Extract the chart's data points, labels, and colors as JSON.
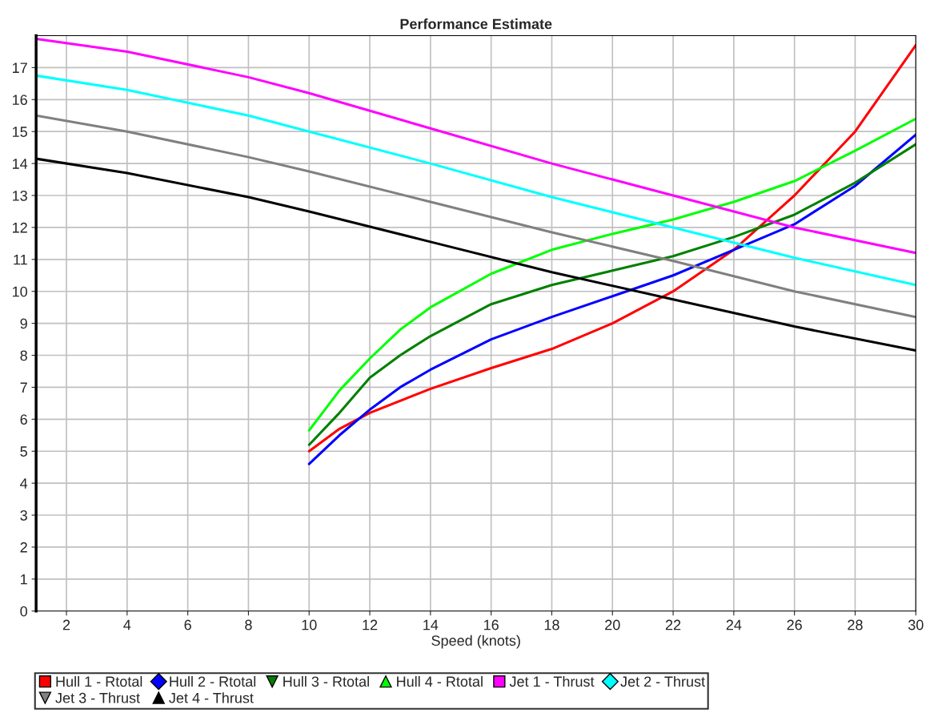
{
  "chart_data": {
    "type": "line",
    "title": "Performance Estimate",
    "xlabel": "Speed (knots)",
    "xlim": [
      1,
      30
    ],
    "xticks": [
      2,
      4,
      6,
      8,
      10,
      12,
      14,
      16,
      18,
      20,
      22,
      24,
      26,
      28,
      30
    ],
    "ylim": [
      0,
      18
    ],
    "yticks": [
      0,
      1,
      2,
      3,
      4,
      5,
      6,
      7,
      8,
      9,
      10,
      11,
      12,
      13,
      14,
      15,
      16,
      17
    ],
    "grid": true,
    "legend": "bottom",
    "series": [
      {
        "name": "Hull 1 - Rtotal",
        "color": "#ff0000",
        "x": [
          10,
          11,
          12,
          14,
          16,
          18,
          20,
          22,
          24,
          26,
          28,
          30
        ],
        "values": [
          5.0,
          5.7,
          6.2,
          6.95,
          7.6,
          8.2,
          9.0,
          10.0,
          11.3,
          13.0,
          15.0,
          17.7
        ]
      },
      {
        "name": "Hull 2 - Rtotal",
        "color": "#0000ff",
        "x": [
          10,
          11,
          12,
          13,
          14,
          16,
          18,
          20,
          22,
          24,
          26,
          28,
          30
        ],
        "values": [
          4.6,
          5.5,
          6.3,
          7.0,
          7.55,
          8.5,
          9.2,
          9.85,
          10.5,
          11.3,
          12.1,
          13.3,
          14.9
        ]
      },
      {
        "name": "Hull 3 - Rtotal",
        "color": "#008000",
        "x": [
          10,
          11,
          12,
          13,
          14,
          16,
          18,
          20,
          22,
          24,
          26,
          28,
          30
        ],
        "values": [
          5.2,
          6.2,
          7.3,
          8.0,
          8.6,
          9.6,
          10.2,
          10.65,
          11.1,
          11.7,
          12.4,
          13.4,
          14.6
        ]
      },
      {
        "name": "Hull 4 - Rtotal",
        "color": "#00ff00",
        "x": [
          10,
          11,
          12,
          13,
          14,
          16,
          18,
          20,
          22,
          24,
          26,
          28,
          30
        ],
        "values": [
          5.65,
          6.9,
          7.9,
          8.8,
          9.5,
          10.55,
          11.3,
          11.8,
          12.25,
          12.8,
          13.45,
          14.4,
          15.4
        ]
      },
      {
        "name": "Jet 1 - Thrust",
        "color": "#ff00ff",
        "x": [
          1,
          4,
          8,
          10,
          14,
          18,
          22,
          26,
          30
        ],
        "values": [
          17.9,
          17.5,
          16.7,
          16.2,
          15.1,
          14.0,
          13.0,
          12.0,
          11.2
        ]
      },
      {
        "name": "Jet 2 - Thrust",
        "color": "#00ffff",
        "x": [
          1,
          4,
          8,
          10,
          14,
          18,
          22,
          26,
          30
        ],
        "values": [
          16.75,
          16.3,
          15.5,
          15.0,
          14.0,
          12.95,
          12.0,
          11.05,
          10.2
        ]
      },
      {
        "name": "Jet 3 - Thrust",
        "color": "#808080",
        "x": [
          1,
          4,
          8,
          10,
          14,
          18,
          22,
          26,
          30
        ],
        "values": [
          15.5,
          15.0,
          14.2,
          13.75,
          12.8,
          11.85,
          10.95,
          10.0,
          9.2
        ]
      },
      {
        "name": "Jet 4 - Thrust",
        "color": "#000000",
        "x": [
          1,
          4,
          8,
          10,
          14,
          18,
          22,
          26,
          30
        ],
        "values": [
          14.15,
          13.7,
          12.95,
          12.5,
          11.55,
          10.6,
          9.75,
          8.9,
          8.15
        ]
      }
    ]
  }
}
